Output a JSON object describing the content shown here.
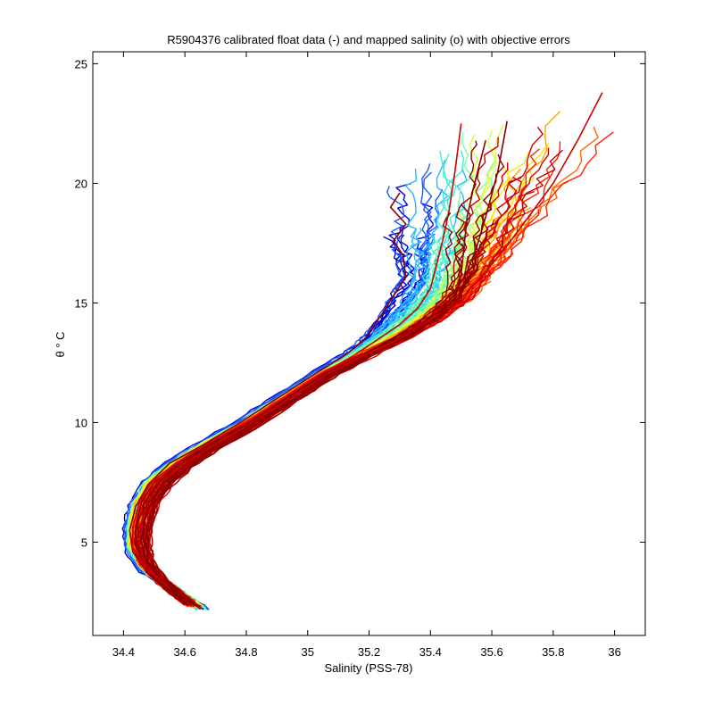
{
  "chart_data": {
    "type": "line",
    "title": "R5904376 calibrated float data (-) and mapped salinity (o) with objective errors",
    "xlabel": "Salinity (PSS-78)",
    "ylabel": "θ ° C",
    "xlim": [
      34.3,
      36.1
    ],
    "ylim": [
      1.1,
      25.5
    ],
    "xticks": [
      34.4,
      34.6,
      34.8,
      35,
      35.2,
      35.4,
      35.6,
      35.8,
      36
    ],
    "xtick_labels": [
      "34.4",
      "34.6",
      "34.8",
      "35",
      "35.2",
      "35.4",
      "35.6",
      "35.8",
      "36"
    ],
    "yticks": [
      5,
      10,
      15,
      20,
      25
    ],
    "ytick_labels": [
      "5",
      "10",
      "15",
      "20",
      "25"
    ],
    "grid": false,
    "colormap": "jet",
    "colors": [
      "#0000d0",
      "#1a5cff",
      "#2ab8ff",
      "#3df0d0",
      "#7dffa0",
      "#d8ff40",
      "#ffe600",
      "#ffa500",
      "#ff6a00",
      "#ff2000",
      "#d00000",
      "#8b0000"
    ],
    "series": [
      {
        "values_x": [
          34.66,
          34.61,
          34.55,
          34.48,
          34.43,
          34.42,
          34.44,
          34.48,
          34.55,
          34.65,
          34.78,
          34.9,
          35.02,
          35.12,
          35.18,
          35.24,
          35.28,
          35.32,
          35.31,
          35.28,
          35.32,
          35.27,
          35.3
        ],
        "values_y": [
          2.2,
          2.6,
          3.1,
          3.7,
          4.6,
          5.5,
          6.5,
          7.4,
          8.3,
          9.0,
          10.0,
          11.0,
          12.0,
          12.8,
          13.4,
          14.5,
          15.3,
          16.1,
          17.0,
          17.6,
          18.3,
          19.0,
          19.6
        ]
      },
      {
        "values_x": [
          34.65,
          34.6,
          34.54,
          34.47,
          34.43,
          34.43,
          34.45,
          34.49,
          34.57,
          34.67,
          34.8,
          34.92,
          35.04,
          35.15,
          35.22,
          35.3,
          35.36,
          35.4,
          35.42,
          35.44,
          35.46,
          35.48,
          35.5
        ],
        "values_y": [
          2.2,
          2.7,
          3.2,
          3.9,
          4.8,
          5.6,
          6.6,
          7.5,
          8.3,
          9.1,
          10.0,
          11.0,
          12.0,
          12.8,
          13.4,
          14.1,
          14.8,
          15.6,
          16.6,
          17.6,
          18.8,
          20.5,
          22.5
        ]
      },
      {
        "values_x": [
          34.64,
          34.59,
          34.53,
          34.48,
          34.44,
          34.44,
          34.46,
          34.5,
          34.58,
          34.68,
          34.81,
          34.93,
          35.05,
          35.16,
          35.26,
          35.35,
          35.42,
          35.48,
          35.52,
          35.55,
          35.58,
          35.62,
          35.65
        ],
        "values_y": [
          2.3,
          2.8,
          3.3,
          4.0,
          4.9,
          5.7,
          6.7,
          7.5,
          8.3,
          9.1,
          10.0,
          11.0,
          12.0,
          12.7,
          13.4,
          14.1,
          14.8,
          15.5,
          16.3,
          17.3,
          18.6,
          20.5,
          22.6
        ]
      },
      {
        "values_x": [
          34.63,
          34.58,
          34.52,
          34.47,
          34.45,
          34.46,
          34.48,
          34.52,
          34.6,
          34.7,
          34.82,
          34.94,
          35.06,
          35.18,
          35.3,
          35.4,
          35.5,
          35.58,
          35.65,
          35.72,
          35.8,
          35.88,
          35.96
        ],
        "values_y": [
          2.3,
          2.8,
          3.4,
          4.1,
          5.0,
          5.8,
          6.7,
          7.5,
          8.3,
          9.1,
          10.0,
          11.0,
          12.0,
          12.8,
          13.5,
          14.3,
          15.2,
          16.3,
          17.4,
          18.6,
          20.0,
          21.8,
          23.8
        ]
      },
      {
        "values_x": [
          34.62,
          34.57,
          34.52,
          34.48,
          34.47,
          34.48,
          34.5,
          34.55,
          34.62,
          34.72,
          34.84,
          34.96,
          35.08,
          35.2,
          35.32,
          35.42,
          35.48,
          35.5,
          35.51,
          35.52,
          35.54,
          35.56,
          35.58
        ],
        "values_y": [
          2.4,
          2.9,
          3.5,
          4.2,
          5.0,
          5.8,
          6.7,
          7.5,
          8.3,
          9.1,
          10.0,
          11.0,
          12.0,
          12.8,
          13.6,
          14.4,
          15.2,
          16.2,
          17.4,
          18.6,
          19.8,
          20.8,
          21.8
        ]
      }
    ]
  }
}
